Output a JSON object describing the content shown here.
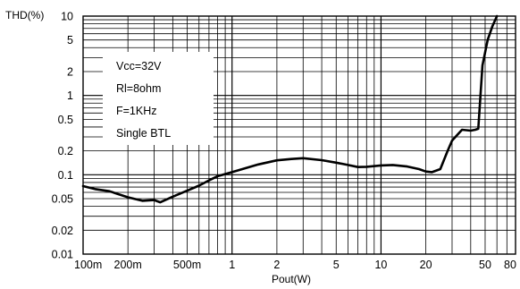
{
  "chart_data": {
    "type": "line",
    "title": "",
    "ylabel": "THD(%)",
    "xlabel": "Pout(W)",
    "x_scale": "log",
    "y_scale": "log",
    "xlim": [
      0.1,
      80
    ],
    "ylim": [
      0.01,
      10
    ],
    "grid": true,
    "x_ticks": [
      {
        "value": 0.1,
        "label": "100m"
      },
      {
        "value": 0.2,
        "label": "200m"
      },
      {
        "value": 0.5,
        "label": "500m"
      },
      {
        "value": 1,
        "label": "1"
      },
      {
        "value": 2,
        "label": "2"
      },
      {
        "value": 5,
        "label": "5"
      },
      {
        "value": 10,
        "label": "10"
      },
      {
        "value": 20,
        "label": "20"
      },
      {
        "value": 50,
        "label": "50"
      },
      {
        "value": 80,
        "label": "80"
      }
    ],
    "y_ticks": [
      {
        "value": 10,
        "label": "10"
      },
      {
        "value": 5,
        "label": "5"
      },
      {
        "value": 2,
        "label": "2"
      },
      {
        "value": 1,
        "label": "1"
      },
      {
        "value": 0.5,
        "label": "0.5"
      },
      {
        "value": 0.2,
        "label": "0.2"
      },
      {
        "value": 0.1,
        "label": "0.1"
      },
      {
        "value": 0.05,
        "label": "0.05"
      },
      {
        "value": 0.02,
        "label": "0.02"
      },
      {
        "value": 0.01,
        "label": "0.01"
      }
    ],
    "annotations": [
      "Vcc=32V",
      "Rl=8ohm",
      "F=1KHz",
      "Single BTL"
    ],
    "series": [
      {
        "x": [
          0.1,
          0.12,
          0.15,
          0.2,
          0.25,
          0.3,
          0.33,
          0.4,
          0.5,
          0.6,
          0.7,
          0.8,
          1,
          1.5,
          2,
          2.5,
          3,
          4,
          5,
          6,
          7,
          8,
          10,
          12,
          15,
          18,
          20,
          22,
          25,
          28,
          30,
          35,
          40,
          43,
          45,
          48,
          52,
          56,
          60
        ],
        "y": [
          0.072,
          0.066,
          0.062,
          0.052,
          0.047,
          0.048,
          0.045,
          0.053,
          0.063,
          0.073,
          0.085,
          0.096,
          0.108,
          0.135,
          0.152,
          0.158,
          0.162,
          0.153,
          0.142,
          0.133,
          0.125,
          0.126,
          0.131,
          0.133,
          0.127,
          0.118,
          0.11,
          0.108,
          0.118,
          0.2,
          0.27,
          0.37,
          0.36,
          0.37,
          0.38,
          2.4,
          5.0,
          7.5,
          10.0
        ]
      }
    ],
    "line_color": "#000000"
  }
}
